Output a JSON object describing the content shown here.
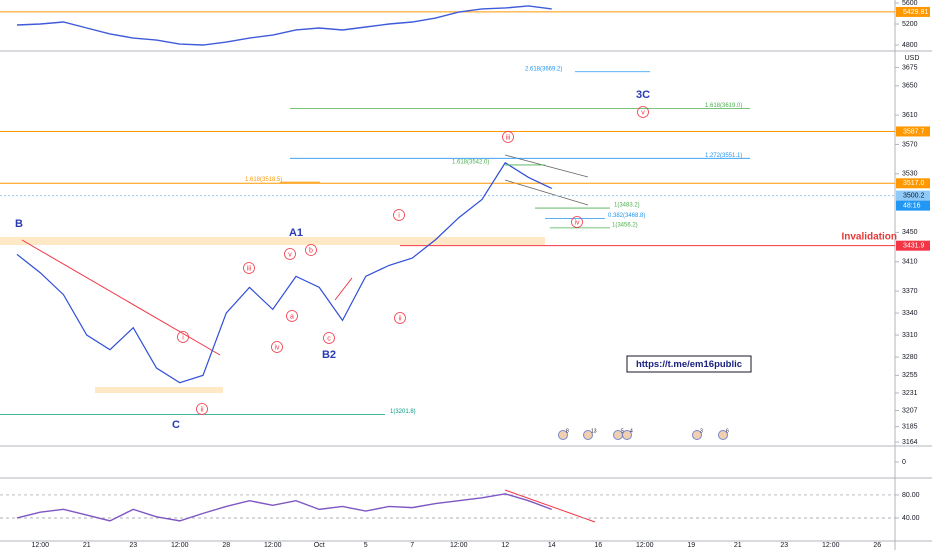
{
  "chart_data": [
    {
      "type": "line",
      "axis_unit": "USD",
      "categories": [
        null,
        "12:00",
        null,
        "21",
        null,
        "23",
        null,
        "12:00",
        null,
        "28",
        null,
        "12:00",
        null,
        "Oct",
        null,
        "5",
        null,
        "7",
        null,
        "12:00",
        null,
        "12",
        null,
        "14",
        null,
        "16",
        null,
        "12:00",
        null,
        "19",
        null,
        "21",
        null,
        "23",
        null,
        "12:00",
        null,
        "26"
      ],
      "series": [
        {
          "color": "#2f4fd8",
          "values": [
            3420,
            3395,
            3365,
            3310,
            3290,
            3320,
            3265,
            3245,
            3255,
            3340,
            3375,
            3345,
            3390,
            3375,
            3330,
            3390,
            3405,
            3415,
            3440,
            3470,
            3495,
            3545,
            3525,
            3510,
            null,
            null,
            null,
            null,
            null,
            null,
            null,
            null,
            null,
            null,
            null,
            null,
            null,
            null
          ]
        }
      ],
      "ylim": [
        3160,
        3692
      ],
      "yticks": [
        3164,
        3185,
        3207,
        3231,
        3255,
        3280,
        3310,
        3340,
        3370,
        3410,
        3450,
        3530,
        3570,
        3610,
        3650,
        3675
      ],
      "price_lines": [
        {
          "value": 3587.7,
          "color": "#ff9800"
        },
        {
          "value": 3517,
          "label": "3517.0",
          "color": "#ff9800"
        },
        {
          "value": 3500.2,
          "color": "#90caf9"
        },
        {
          "value": 3431.9,
          "color": "#f23645"
        }
      ],
      "countdown": "48:16",
      "levels": [
        {
          "label": "2.618(3669.2)",
          "value": 3669.2,
          "color": "#2196f3"
        },
        {
          "label": "1.618(3619.0)",
          "value": 3619.0,
          "color": "#4caf50"
        },
        {
          "label": "1.272(3551.1)",
          "value": 3551.1,
          "color": "#2196f3"
        },
        {
          "label": "1.618(3542.0)",
          "value": 3542.0,
          "color": "#4caf50"
        },
        {
          "label": "1.618(3518.5)",
          "value": 3518.5,
          "color": "#ff9800"
        },
        {
          "label": "1(3483.2)",
          "value": 3483.2,
          "color": "#4caf50"
        },
        {
          "label": "0.382(3468.8)",
          "value": 3468.8,
          "color": "#2196f3"
        },
        {
          "label": "1(3456.2)",
          "value": 3456.2,
          "color": "#4caf50"
        },
        {
          "label": "1(3201.8)",
          "value": 3201.8,
          "color": "#089981"
        }
      ],
      "wave_labels": [
        "B",
        "C",
        "A1",
        "B2",
        "3C"
      ],
      "circled_labels": [
        "iii",
        "i",
        "iv",
        "ii",
        "v",
        "iii",
        "v",
        "b",
        "a",
        "iv",
        "c",
        "i",
        "ii"
      ],
      "annotation": "Invalidation",
      "link": "https://t.me/em16public",
      "events": [
        "8",
        "13",
        "5",
        "4",
        "3",
        "6"
      ]
    },
    {
      "type": "line",
      "series": [
        {
          "color": "#3f5bd9",
          "values": [
            5181,
            5200,
            5238,
            5124,
            5010,
            4933,
            4895,
            4819,
            4800,
            4857,
            4933,
            4990,
            5086,
            5124,
            5086,
            5143,
            5200,
            5238,
            5314,
            5428,
            5486,
            5505,
            5543,
            5486,
            null,
            null,
            null,
            null,
            null,
            null,
            null,
            null,
            null,
            null,
            null,
            null,
            null,
            null
          ]
        }
      ],
      "ylim": [
        4705,
        5657
      ],
      "yticks": [
        4800,
        5200,
        5600
      ],
      "price_lines": [
        {
          "value": 5429.81,
          "color": "#ff9800"
        }
      ]
    },
    {
      "type": "events",
      "ylim": [
        -1,
        1
      ],
      "yticks": [
        0
      ]
    },
    {
      "type": "line",
      "series": [
        {
          "color": "#7e57c2",
          "values": [
            40,
            50,
            55,
            45,
            35,
            55,
            42,
            35,
            48,
            60,
            70,
            62,
            70,
            55,
            60,
            52,
            60,
            58,
            65,
            70,
            75,
            82,
            70,
            55,
            null,
            null,
            null,
            null,
            null,
            null,
            null,
            null,
            null,
            null,
            null,
            null,
            null,
            null
          ]
        }
      ],
      "ylim": [
        0,
        106
      ],
      "yticks": [
        {
          "value": 80,
          "label": "80.00"
        },
        {
          "value": 40,
          "label": "40.00"
        }
      ],
      "grid": true
    }
  ]
}
